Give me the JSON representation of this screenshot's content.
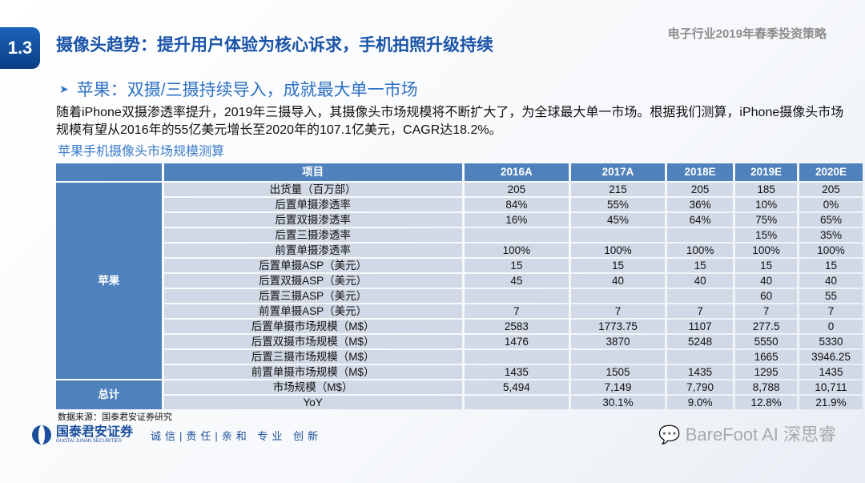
{
  "header": {
    "section": "1.3",
    "title": "摄像头趋势：提升用户体验为核心诉求，手机拍照升级持续",
    "report": "电子行业2019年春季投资策略"
  },
  "subtitle": "苹果：双摄/三摄持续导入，成就最大单一市场",
  "paragraph": "随着iPhone双摄渗透率提升，2019年三摄导入，其摄像头市场规模将不断扩大了，为全球最大单一市场。根据我们测算，iPhone摄像头市场规模有望从2016年的55亿美元增长至2020年的107.1亿美元，CAGR达18.2%。",
  "table": {
    "caption": "苹果手机摄像头市场规模测算",
    "headers": [
      "项目",
      "2016A",
      "2017A",
      "2018E",
      "2019E",
      "2020E"
    ],
    "groups": [
      "苹果",
      "总计"
    ],
    "rows": [
      [
        "出货量（百万部）",
        "205",
        "215",
        "205",
        "185",
        "205"
      ],
      [
        "后置单摄渗透率",
        "84%",
        "55%",
        "36%",
        "10%",
        "0%"
      ],
      [
        "后置双摄渗透率",
        "16%",
        "45%",
        "64%",
        "75%",
        "65%"
      ],
      [
        "后置三摄渗透率",
        "",
        "",
        "",
        "15%",
        "35%"
      ],
      [
        "前置单摄渗透率",
        "100%",
        "100%",
        "100%",
        "100%",
        "100%"
      ],
      [
        "后置单摄ASP（美元）",
        "15",
        "15",
        "15",
        "15",
        "15"
      ],
      [
        "后置双摄ASP（美元）",
        "45",
        "40",
        "40",
        "40",
        "40"
      ],
      [
        "后置三摄ASP（美元）",
        "",
        "",
        "",
        "60",
        "55"
      ],
      [
        "前置单摄ASP（美元）",
        "7",
        "7",
        "7",
        "7",
        "7"
      ],
      [
        "后置单摄市场规模（M$）",
        "2583",
        "1773.75",
        "1107",
        "277.5",
        "0"
      ],
      [
        "后置双摄市场规模（M$）",
        "1476",
        "3870",
        "5248",
        "5550",
        "5330"
      ],
      [
        "后置三摄市场规模（M$）",
        "",
        "",
        "",
        "1665",
        "3946.25"
      ],
      [
        "前置单摄市场规模（M$）",
        "1435",
        "1505",
        "1435",
        "1295",
        "1435"
      ],
      [
        "市场规模（M$）",
        "5,494",
        "7,149",
        "7,790",
        "8,788",
        "10,711"
      ],
      [
        "YoY",
        "",
        "30.1%",
        "9.0%",
        "12.8%",
        "21.9%"
      ]
    ]
  },
  "source": "数据来源：国泰君安证券研究",
  "footer": {
    "company": "国泰君安证券",
    "company_en": "GUOTAI JUNAN SECURITIES",
    "motto": "诚信|责任|亲和 专业 创新",
    "watermark": "BareFoot AI 深思睿"
  }
}
